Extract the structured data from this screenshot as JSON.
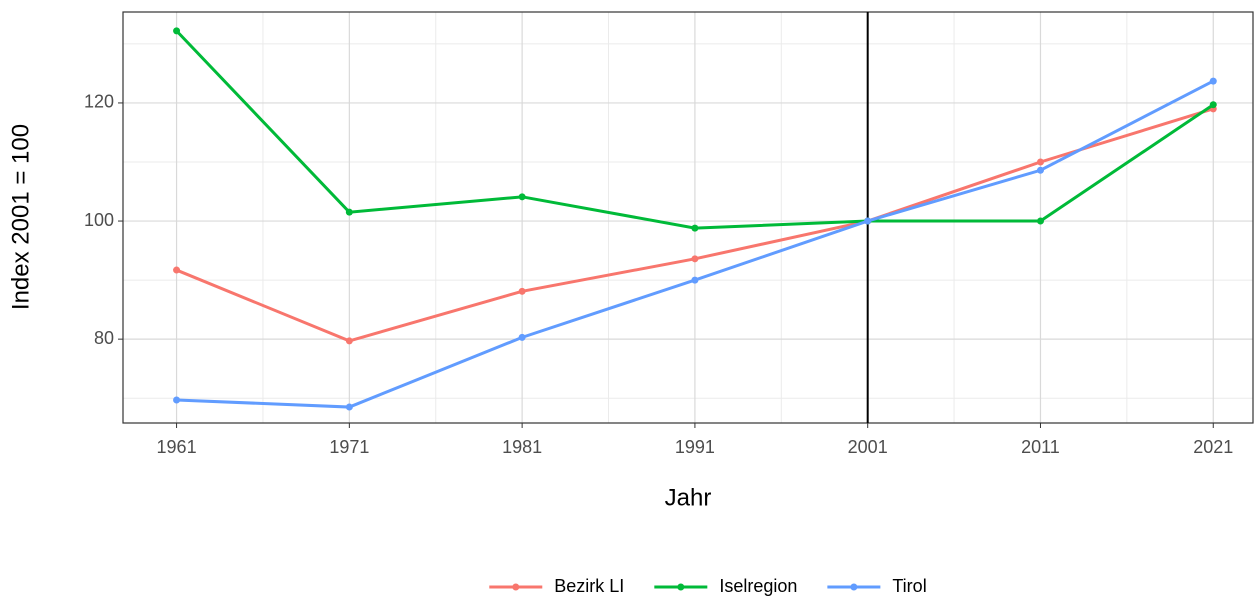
{
  "chart_data": {
    "type": "line",
    "x_label": "Jahr",
    "y_label": "Index 2001 = 100",
    "x": [
      1961,
      1971,
      1981,
      1991,
      2001,
      2011,
      2021
    ],
    "series": [
      {
        "name": "Bezirk LI",
        "color": "#F8766D",
        "values": [
          91.7,
          79.7,
          88.1,
          93.6,
          100,
          110,
          119
        ]
      },
      {
        "name": "Iselregion",
        "color": "#00BA38",
        "values": [
          132.2,
          101.5,
          104.1,
          98.8,
          100,
          100,
          119.7
        ]
      },
      {
        "name": "Tirol",
        "color": "#619CFF",
        "values": [
          69.7,
          68.5,
          80.3,
          90,
          100,
          108.6,
          123.7
        ]
      }
    ],
    "xlim": [
      1957.9,
      2023.3
    ],
    "xticks": [
      1961,
      1971,
      1981,
      1991,
      2001,
      2011,
      2021
    ],
    "xminor": [
      1966,
      1976,
      1986,
      1996,
      2006,
      2016
    ],
    "ylim": [
      65.8,
      135.4
    ],
    "yticks": [
      80,
      100,
      120
    ],
    "yminor": [
      70,
      90,
      110,
      130
    ],
    "vline": 2001,
    "grid": true,
    "legend": "bottom"
  }
}
